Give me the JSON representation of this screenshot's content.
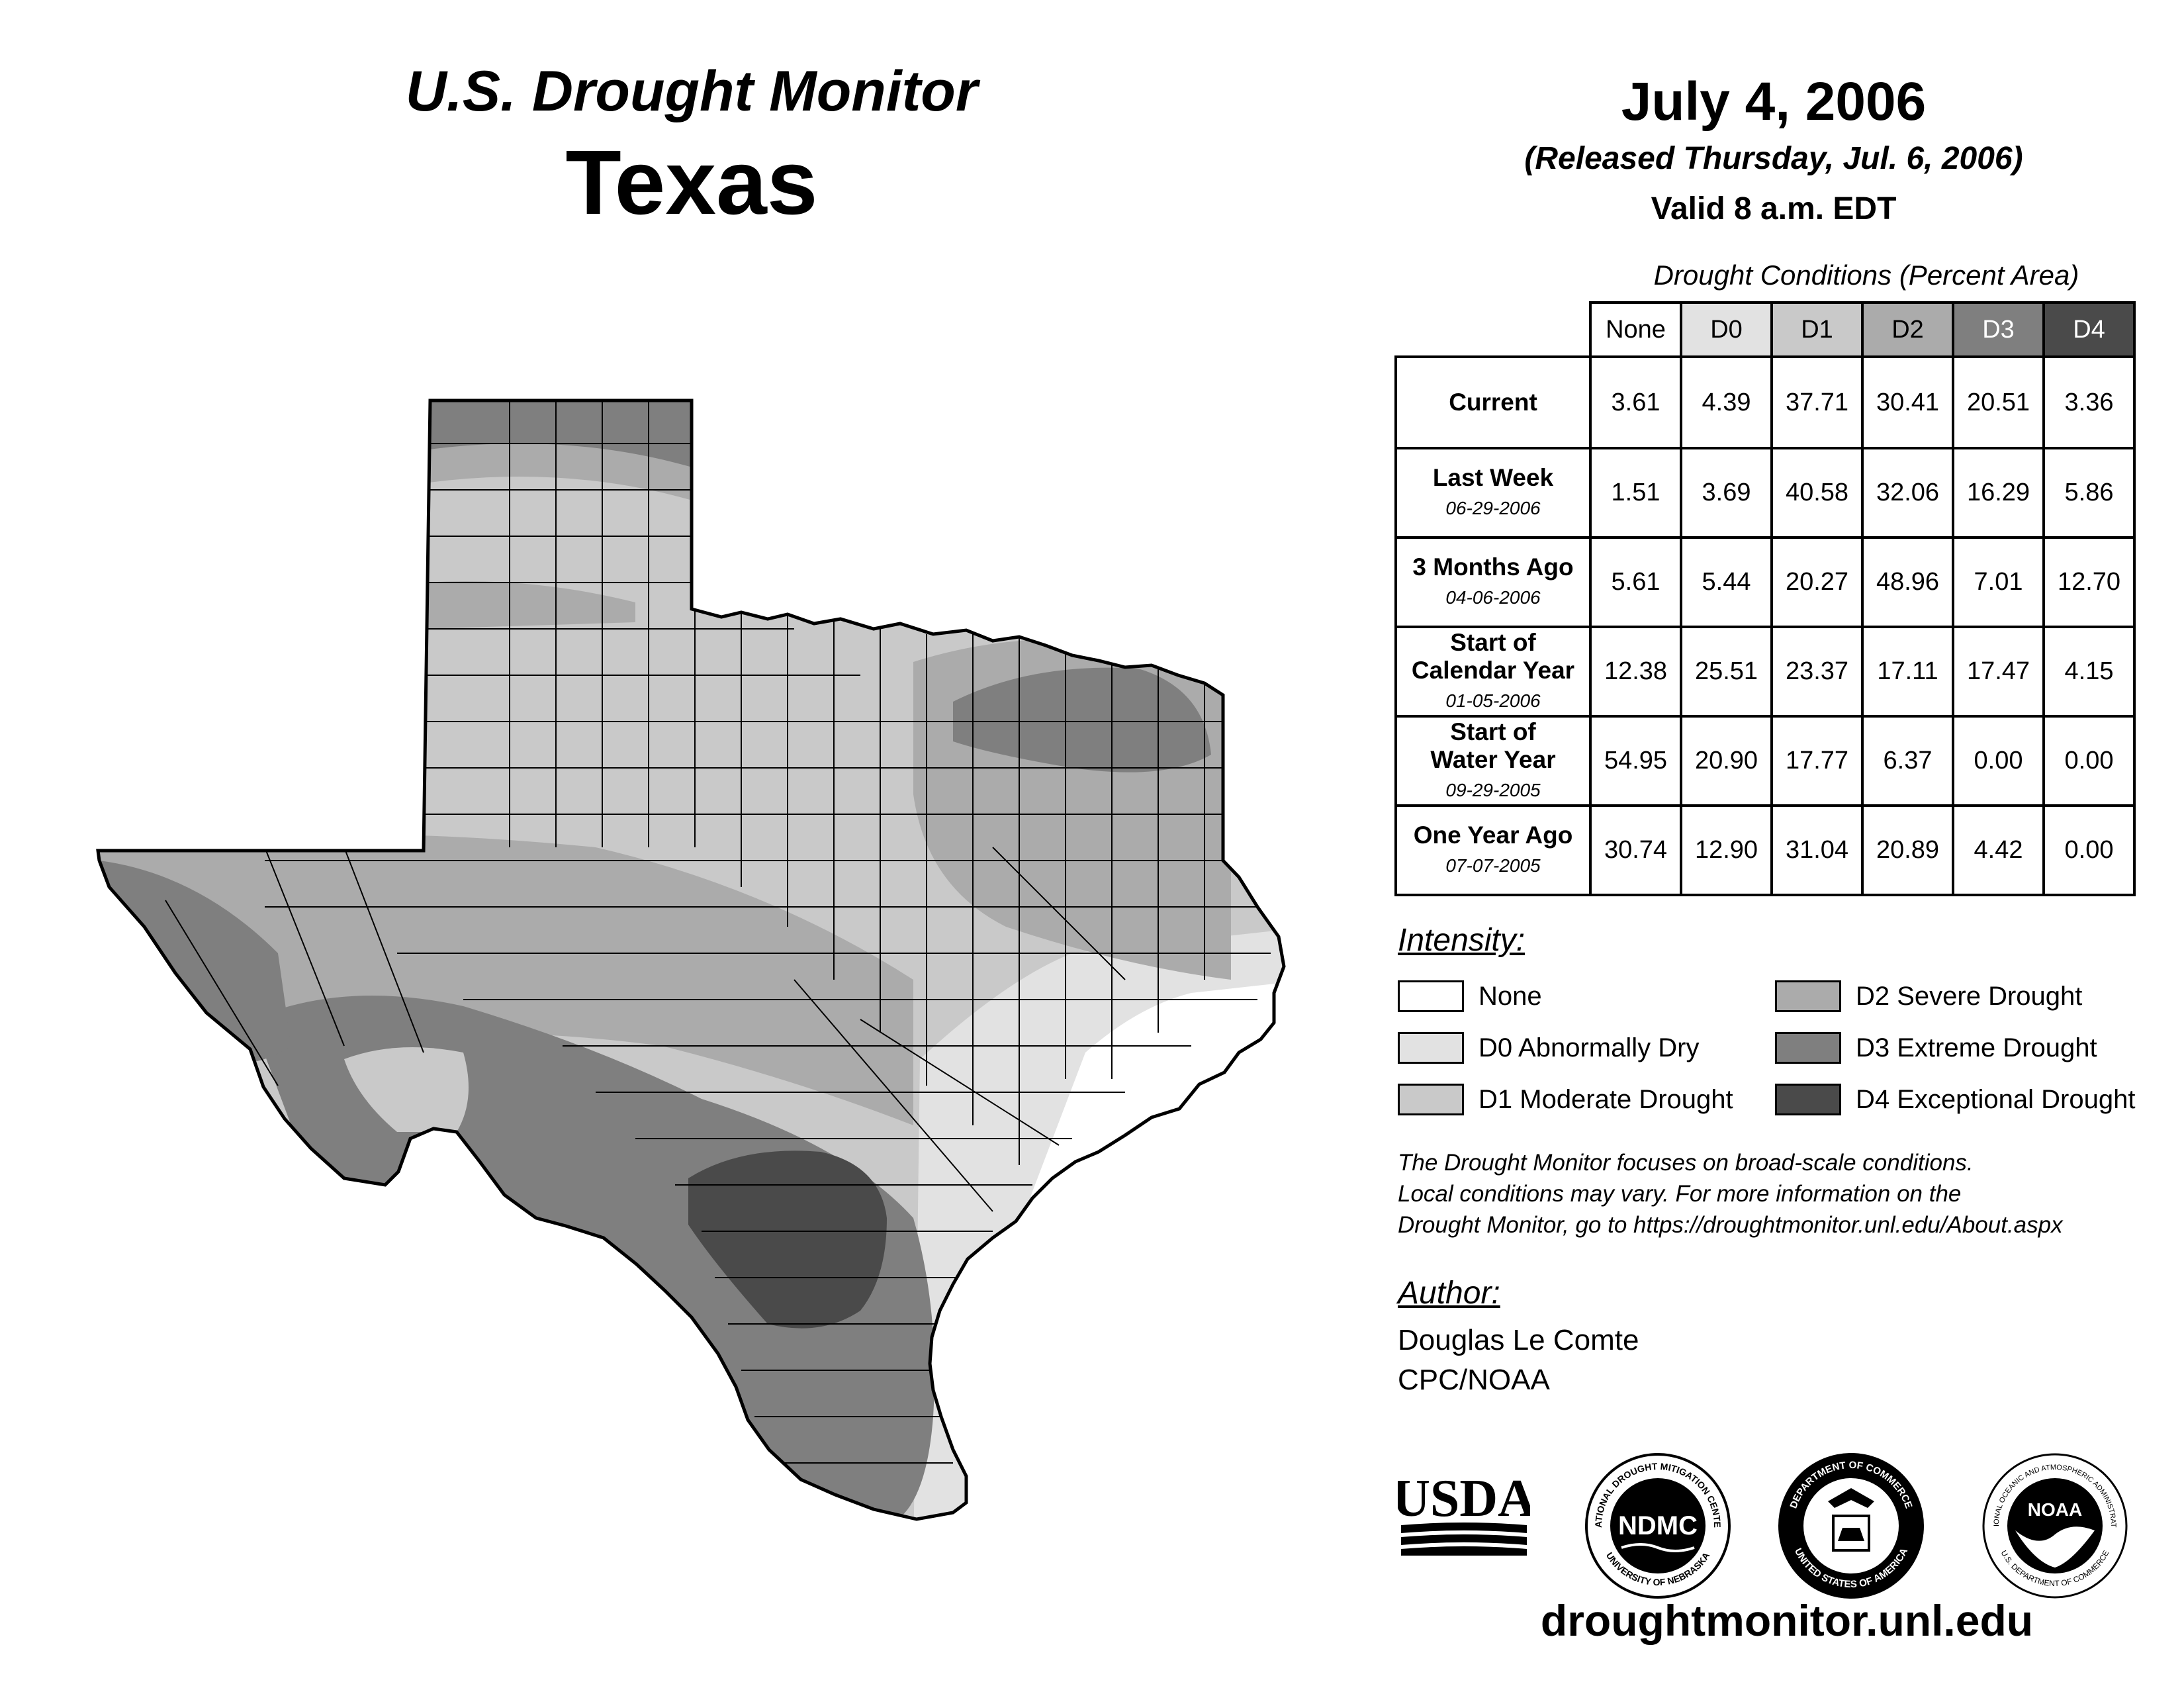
{
  "header": {
    "product": "U.S. Drought Monitor",
    "region": "Texas",
    "date": "July 4, 2006",
    "released": "(Released Thursday, Jul. 6, 2006)",
    "valid": "Valid 8 a.m. EDT"
  },
  "stats": {
    "caption": "Drought Conditions (Percent Area)",
    "columns": [
      "None",
      "D0",
      "D1",
      "D2",
      "D3",
      "D4"
    ],
    "rows": [
      {
        "label": "Current",
        "date": "",
        "values": [
          "3.61",
          "4.39",
          "37.71",
          "30.41",
          "20.51",
          "3.36"
        ]
      },
      {
        "label": "Last Week",
        "date": "06-29-2006",
        "values": [
          "1.51",
          "3.69",
          "40.58",
          "32.06",
          "16.29",
          "5.86"
        ]
      },
      {
        "label": "3 Months Ago",
        "date": "04-06-2006",
        "values": [
          "5.61",
          "5.44",
          "20.27",
          "48.96",
          "7.01",
          "12.70"
        ]
      },
      {
        "label1": "Start of",
        "label2": "Calendar Year",
        "date": "01-05-2006",
        "values": [
          "12.38",
          "25.51",
          "23.37",
          "17.11",
          "17.47",
          "4.15"
        ]
      },
      {
        "label1": "Start of",
        "label2": "Water Year",
        "date": "09-29-2005",
        "values": [
          "54.95",
          "20.90",
          "17.77",
          "6.37",
          "0.00",
          "0.00"
        ]
      },
      {
        "label": "One Year Ago",
        "date": "07-07-2005",
        "values": [
          "30.74",
          "12.90",
          "31.04",
          "20.89",
          "4.42",
          "0.00"
        ]
      }
    ]
  },
  "legend": {
    "title": "Intensity:",
    "items": [
      {
        "label": "None",
        "color": "#ffffff"
      },
      {
        "label": "D0 Abnormally Dry",
        "color": "#e2e2e2"
      },
      {
        "label": "D1 Moderate Drought",
        "color": "#c9c9c9"
      },
      {
        "label": "D2 Severe Drought",
        "color": "#ababab"
      },
      {
        "label": "D3 Extreme Drought",
        "color": "#7f7f7f"
      },
      {
        "label": "D4 Exceptional Drought",
        "color": "#4a4a4a"
      }
    ]
  },
  "note": {
    "line1": "The Drought Monitor focuses on broad-scale conditions.",
    "line2": "Local conditions may vary. For more information on the",
    "line3": "Drought Monitor, go to https://droughtmonitor.unl.edu/About.aspx"
  },
  "author": {
    "title": "Author:",
    "name": "Douglas Le Comte",
    "org": "CPC/NOAA"
  },
  "logos": {
    "usda": "USDA",
    "ndmc": "NDMC",
    "ndmc_ring_top": "NATIONAL DROUGHT MITIGATION CENTER",
    "ndmc_ring_bottom": "UNIVERSITY OF NEBRASKA",
    "doc_ring_top": "DEPARTMENT OF COMMERCE",
    "doc_ring_bottom": "UNITED STATES OF AMERICA",
    "noaa": "NOAA",
    "noaa_ring_top": "NATIONAL OCEANIC AND ATMOSPHERIC ADMINISTRATION",
    "noaa_ring_bottom": "U.S. DEPARTMENT OF COMMERCE"
  },
  "footer": {
    "website": "droughtmonitor.unl.edu"
  }
}
